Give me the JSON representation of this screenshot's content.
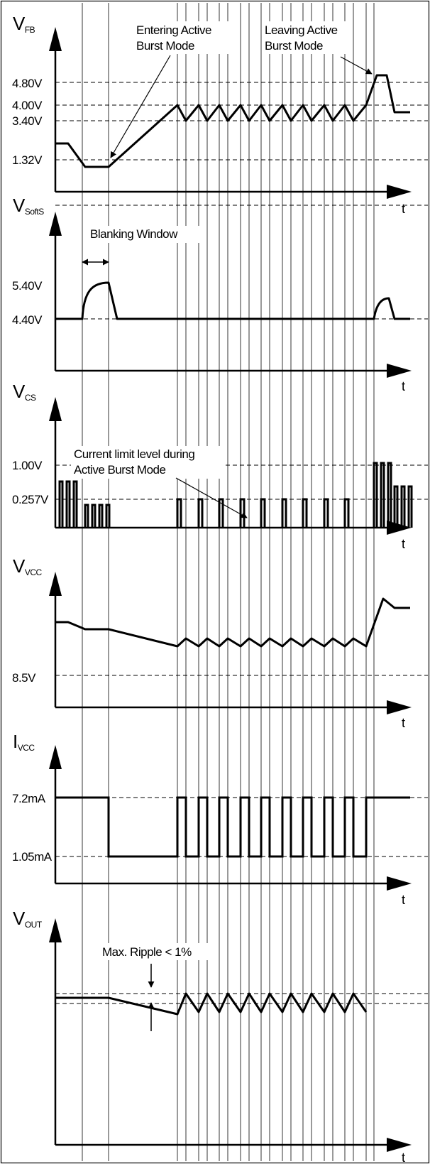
{
  "panels": {
    "vfb": {
      "signal": "V",
      "signal_sub": "FB",
      "t_label": "t",
      "levels": [
        "4.80V",
        "4.00V",
        "3.40V",
        "1.32V"
      ],
      "annotations": {
        "enter_1": "Entering Active",
        "enter_2": "Burst Mode",
        "leave_1": "Leaving Active",
        "leave_2": "Burst Mode"
      }
    },
    "vsofts": {
      "signal": "V",
      "signal_sub": "SoftS",
      "t_label": "t",
      "levels": [
        "5.40V",
        "4.40V"
      ],
      "annotations": {
        "blanking": "Blanking Window"
      }
    },
    "vcs": {
      "signal": "V",
      "signal_sub": "CS",
      "t_label": "t",
      "levels": [
        "1.00V",
        "0.257V"
      ],
      "annotations": {
        "climit_1": "Current limit level during",
        "climit_2": "Active Burst Mode"
      }
    },
    "vvcc": {
      "signal": "V",
      "signal_sub": "VCC",
      "t_label": "t",
      "levels": [
        "8.5V"
      ]
    },
    "ivcc": {
      "signal": "I",
      "signal_sub": "VCC",
      "t_label": "t",
      "levels": [
        "7.2mA",
        "1.05mA"
      ]
    },
    "vout": {
      "signal": "V",
      "signal_sub": "OUT",
      "t_label": "t",
      "annotations": {
        "ripple": "Max. Ripple < 1%"
      }
    }
  }
}
